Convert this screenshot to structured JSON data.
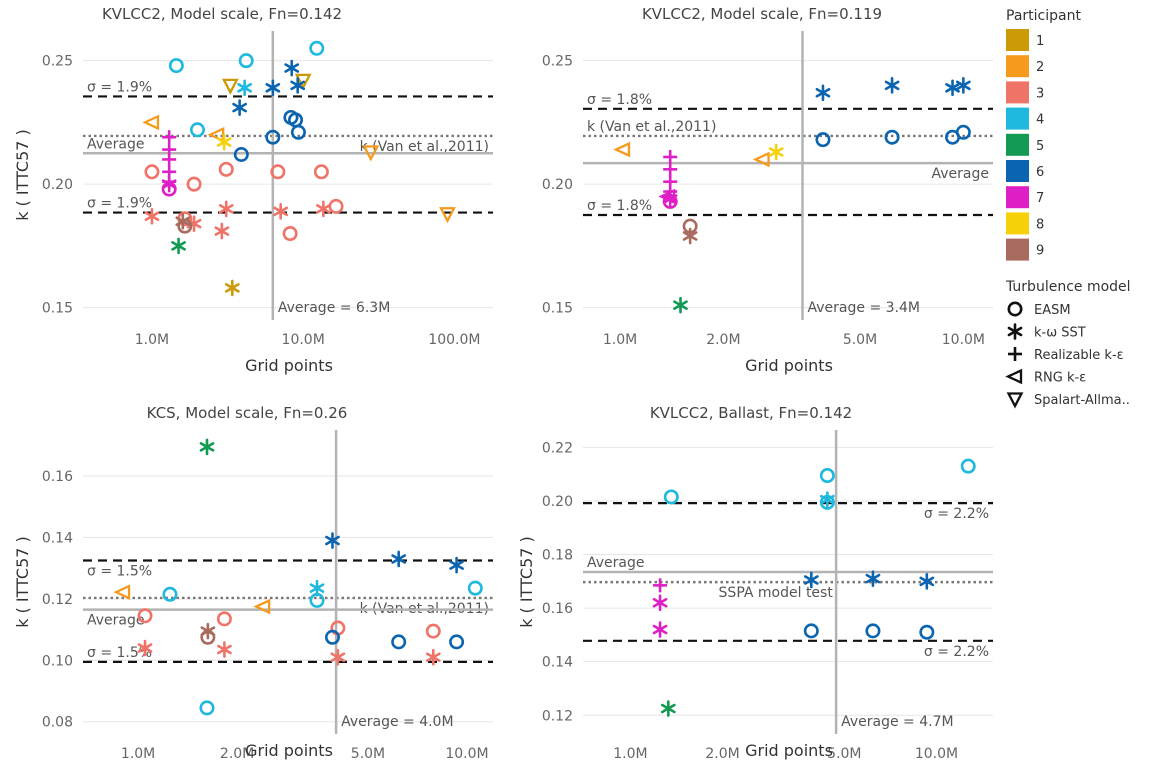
{
  "chart_data": [
    {
      "type": "scatter",
      "title": "KVLCC2, Model scale, Fn=0.142",
      "xlabel": "Grid points",
      "ylabel": "k ( ITTC57 )",
      "xscale": "log",
      "xlim": [
        0.35,
        180
      ],
      "ylim": [
        0.145,
        0.262
      ],
      "xticks": [
        1,
        10,
        100
      ],
      "xtick_labels": [
        "1.0M",
        "10.0M",
        "100.0M"
      ],
      "yticks": [
        0.15,
        0.2,
        0.25
      ],
      "ytick_labels": [
        "0.15",
        "0.20",
        "0.25"
      ],
      "ref_lines": [
        {
          "kind": "dash",
          "y": 0.2355,
          "label": "σ = 1.9%",
          "label_pos": "above-left"
        },
        {
          "kind": "dash",
          "y": 0.1885,
          "label": "σ = 1.9%",
          "label_pos": "above-left"
        },
        {
          "kind": "dot",
          "y": 0.2195,
          "label": "k (Van et al.,2011)",
          "label_pos": "below-right"
        },
        {
          "kind": "solid",
          "y": 0.2125,
          "label": "Average",
          "label_pos": "above-left"
        },
        {
          "kind": "vsolid",
          "x": 6.3,
          "label": "Average = 6.3M",
          "label_pos": "bottom-right"
        }
      ],
      "points": [
        {
          "x": 3.4,
          "y": 0.158,
          "p": 1,
          "m": "star"
        },
        {
          "x": 3.3,
          "y": 0.24,
          "p": 1,
          "m": "tridown"
        },
        {
          "x": 10.0,
          "y": 0.242,
          "p": 1,
          "m": "tridown"
        },
        {
          "x": 2.7,
          "y": 0.22,
          "p": 2,
          "m": "trileft"
        },
        {
          "x": 1.0,
          "y": 0.225,
          "p": 2,
          "m": "trileft"
        },
        {
          "x": 28,
          "y": 0.213,
          "p": 2,
          "m": "tridown"
        },
        {
          "x": 90,
          "y": 0.188,
          "p": 2,
          "m": "tridown"
        },
        {
          "x": 1.0,
          "y": 0.205,
          "p": 3,
          "m": "circle"
        },
        {
          "x": 1.9,
          "y": 0.2,
          "p": 3,
          "m": "circle"
        },
        {
          "x": 3.1,
          "y": 0.206,
          "p": 3,
          "m": "circle"
        },
        {
          "x": 6.8,
          "y": 0.205,
          "p": 3,
          "m": "circle"
        },
        {
          "x": 13.2,
          "y": 0.205,
          "p": 3,
          "m": "circle"
        },
        {
          "x": 16.5,
          "y": 0.191,
          "p": 3,
          "m": "circle"
        },
        {
          "x": 8.2,
          "y": 0.18,
          "p": 3,
          "m": "circle"
        },
        {
          "x": 1.65,
          "y": 0.186,
          "p": 3,
          "m": "circle"
        },
        {
          "x": 1.0,
          "y": 0.187,
          "p": 3,
          "m": "star"
        },
        {
          "x": 1.9,
          "y": 0.184,
          "p": 3,
          "m": "star"
        },
        {
          "x": 2.9,
          "y": 0.181,
          "p": 3,
          "m": "star"
        },
        {
          "x": 3.1,
          "y": 0.19,
          "p": 3,
          "m": "star"
        },
        {
          "x": 7.1,
          "y": 0.189,
          "p": 3,
          "m": "star"
        },
        {
          "x": 13.6,
          "y": 0.19,
          "p": 3,
          "m": "star"
        },
        {
          "x": 1.45,
          "y": 0.248,
          "p": 4,
          "m": "circle"
        },
        {
          "x": 2.0,
          "y": 0.222,
          "p": 4,
          "m": "circle"
        },
        {
          "x": 4.2,
          "y": 0.25,
          "p": 4,
          "m": "circle"
        },
        {
          "x": 12.3,
          "y": 0.255,
          "p": 4,
          "m": "circle"
        },
        {
          "x": 4.1,
          "y": 0.239,
          "p": 4,
          "m": "star"
        },
        {
          "x": 1.5,
          "y": 0.175,
          "p": 5,
          "m": "star"
        },
        {
          "x": 3.9,
          "y": 0.212,
          "p": 6,
          "m": "circle"
        },
        {
          "x": 6.3,
          "y": 0.219,
          "p": 6,
          "m": "circle"
        },
        {
          "x": 8.3,
          "y": 0.227,
          "p": 6,
          "m": "circle"
        },
        {
          "x": 8.9,
          "y": 0.226,
          "p": 6,
          "m": "circle"
        },
        {
          "x": 9.3,
          "y": 0.221,
          "p": 6,
          "m": "circle"
        },
        {
          "x": 3.8,
          "y": 0.231,
          "p": 6,
          "m": "star"
        },
        {
          "x": 6.3,
          "y": 0.239,
          "p": 6,
          "m": "star"
        },
        {
          "x": 8.4,
          "y": 0.247,
          "p": 6,
          "m": "star"
        },
        {
          "x": 9.2,
          "y": 0.24,
          "p": 6,
          "m": "star"
        },
        {
          "x": 1.3,
          "y": 0.219,
          "p": 7,
          "m": "plus"
        },
        {
          "x": 1.3,
          "y": 0.214,
          "p": 7,
          "m": "plus"
        },
        {
          "x": 1.3,
          "y": 0.21,
          "p": 7,
          "m": "plus"
        },
        {
          "x": 1.3,
          "y": 0.205,
          "p": 7,
          "m": "plus"
        },
        {
          "x": 1.3,
          "y": 0.201,
          "p": 7,
          "m": "plus"
        },
        {
          "x": 1.3,
          "y": 0.198,
          "p": 7,
          "m": "circle"
        },
        {
          "x": 1.3,
          "y": 0.2,
          "p": 7,
          "m": "star"
        },
        {
          "x": 3.0,
          "y": 0.217,
          "p": 8,
          "m": "star"
        },
        {
          "x": 1.65,
          "y": 0.183,
          "p": 9,
          "m": "circle"
        },
        {
          "x": 1.6,
          "y": 0.185,
          "p": 9,
          "m": "star"
        }
      ]
    },
    {
      "type": "scatter",
      "title": "KVLCC2, Model scale, Fn=0.119",
      "xlabel": "Grid points",
      "ylabel": "",
      "xscale": "log",
      "xlim": [
        0.78,
        12.2
      ],
      "ylim": [
        0.145,
        0.262
      ],
      "xticks": [
        1,
        2,
        5,
        10
      ],
      "xtick_labels": [
        "1.0M",
        "2.0M",
        "5.0M",
        "10.0M"
      ],
      "yticks": [
        0.15,
        0.2,
        0.25
      ],
      "ytick_labels": [
        "0.15",
        "0.20",
        "0.25"
      ],
      "ref_lines": [
        {
          "kind": "dash",
          "y": 0.2305,
          "label": "σ = 1.8%",
          "label_pos": "above-left"
        },
        {
          "kind": "dash",
          "y": 0.1875,
          "label": "σ = 1.8%",
          "label_pos": "above-left"
        },
        {
          "kind": "dot",
          "y": 0.2195,
          "label": "k (Van et al.,2011)",
          "label_pos": "above-left"
        },
        {
          "kind": "solid",
          "y": 0.2085,
          "label": "Average",
          "label_pos": "below-right"
        },
        {
          "kind": "vsolid",
          "x": 3.4,
          "label": "Average = 3.4M",
          "label_pos": "bottom-right"
        }
      ],
      "points": [
        {
          "x": 1.02,
          "y": 0.214,
          "p": 2,
          "m": "trileft"
        },
        {
          "x": 2.6,
          "y": 0.21,
          "p": 2,
          "m": "trileft"
        },
        {
          "x": 2.85,
          "y": 0.213,
          "p": 8,
          "m": "star"
        },
        {
          "x": 1.5,
          "y": 0.151,
          "p": 5,
          "m": "star"
        },
        {
          "x": 3.9,
          "y": 0.218,
          "p": 6,
          "m": "circle"
        },
        {
          "x": 6.2,
          "y": 0.219,
          "p": 6,
          "m": "circle"
        },
        {
          "x": 9.3,
          "y": 0.219,
          "p": 6,
          "m": "circle"
        },
        {
          "x": 10.0,
          "y": 0.221,
          "p": 6,
          "m": "circle"
        },
        {
          "x": 3.9,
          "y": 0.237,
          "p": 6,
          "m": "star"
        },
        {
          "x": 6.2,
          "y": 0.24,
          "p": 6,
          "m": "star"
        },
        {
          "x": 9.3,
          "y": 0.239,
          "p": 6,
          "m": "star"
        },
        {
          "x": 10.0,
          "y": 0.24,
          "p": 6,
          "m": "star"
        },
        {
          "x": 1.4,
          "y": 0.211,
          "p": 7,
          "m": "plus"
        },
        {
          "x": 1.4,
          "y": 0.206,
          "p": 7,
          "m": "plus"
        },
        {
          "x": 1.4,
          "y": 0.201,
          "p": 7,
          "m": "plus"
        },
        {
          "x": 1.4,
          "y": 0.197,
          "p": 7,
          "m": "plus"
        },
        {
          "x": 1.38,
          "y": 0.195,
          "p": 7,
          "m": "trileft"
        },
        {
          "x": 1.4,
          "y": 0.194,
          "p": 7,
          "m": "star"
        },
        {
          "x": 1.4,
          "y": 0.193,
          "p": 7,
          "m": "circle"
        },
        {
          "x": 1.6,
          "y": 0.183,
          "p": 9,
          "m": "circle"
        },
        {
          "x": 1.6,
          "y": 0.179,
          "p": 9,
          "m": "star"
        }
      ]
    },
    {
      "type": "scatter",
      "title": "KCS, Model scale, Fn=0.26",
      "xlabel": "Grid points",
      "ylabel": "k ( ITTC57 )",
      "xscale": "log",
      "xlim": [
        0.68,
        12.0
      ],
      "ylim": [
        0.076,
        0.175
      ],
      "xticks": [
        1,
        2,
        5,
        10
      ],
      "xtick_labels": [
        "1.0M",
        "2.0M",
        "5.0M",
        "10.0M"
      ],
      "yticks": [
        0.08,
        0.1,
        0.12,
        0.14,
        0.16
      ],
      "ytick_labels": [
        "0.08",
        "0.10",
        "0.12",
        "0.14",
        "0.16"
      ],
      "ref_lines": [
        {
          "kind": "dash",
          "y": 0.1325,
          "label": "σ = 1.5%",
          "label_pos": "below-left"
        },
        {
          "kind": "dash",
          "y": 0.0995,
          "label": "σ = 1.5%",
          "label_pos": "above-left"
        },
        {
          "kind": "dot",
          "y": 0.1203,
          "label": "k (Van et al.,2011)",
          "label_pos": "below-right"
        },
        {
          "kind": "solid",
          "y": 0.1165,
          "label": "Average",
          "label_pos": "below-left"
        },
        {
          "kind": "vsolid",
          "x": 4.0,
          "label": "Average = 4.0M",
          "label_pos": "bottom-right"
        }
      ],
      "points": [
        {
          "x": 0.9,
          "y": 0.1222,
          "p": 2,
          "m": "trileft"
        },
        {
          "x": 2.4,
          "y": 0.1175,
          "p": 2,
          "m": "trileft"
        },
        {
          "x": 1.05,
          "y": 0.1145,
          "p": 3,
          "m": "circle"
        },
        {
          "x": 1.83,
          "y": 0.1135,
          "p": 3,
          "m": "circle"
        },
        {
          "x": 4.05,
          "y": 0.1105,
          "p": 3,
          "m": "circle"
        },
        {
          "x": 7.9,
          "y": 0.1095,
          "p": 3,
          "m": "circle"
        },
        {
          "x": 1.05,
          "y": 0.104,
          "p": 3,
          "m": "star"
        },
        {
          "x": 1.83,
          "y": 0.1035,
          "p": 3,
          "m": "star"
        },
        {
          "x": 4.05,
          "y": 0.101,
          "p": 3,
          "m": "star"
        },
        {
          "x": 7.9,
          "y": 0.101,
          "p": 3,
          "m": "star"
        },
        {
          "x": 1.25,
          "y": 0.1215,
          "p": 4,
          "m": "circle"
        },
        {
          "x": 3.5,
          "y": 0.1195,
          "p": 4,
          "m": "circle"
        },
        {
          "x": 10.6,
          "y": 0.1235,
          "p": 4,
          "m": "circle"
        },
        {
          "x": 1.62,
          "y": 0.0845,
          "p": 4,
          "m": "circle"
        },
        {
          "x": 3.5,
          "y": 0.1235,
          "p": 4,
          "m": "star"
        },
        {
          "x": 1.62,
          "y": 0.1695,
          "p": 5,
          "m": "star"
        },
        {
          "x": 3.9,
          "y": 0.1075,
          "p": 6,
          "m": "circle"
        },
        {
          "x": 6.2,
          "y": 0.106,
          "p": 6,
          "m": "circle"
        },
        {
          "x": 9.3,
          "y": 0.106,
          "p": 6,
          "m": "circle"
        },
        {
          "x": 3.9,
          "y": 0.139,
          "p": 6,
          "m": "star"
        },
        {
          "x": 6.2,
          "y": 0.133,
          "p": 6,
          "m": "star"
        },
        {
          "x": 9.3,
          "y": 0.131,
          "p": 6,
          "m": "star"
        },
        {
          "x": 1.63,
          "y": 0.1075,
          "p": 9,
          "m": "circle"
        },
        {
          "x": 1.63,
          "y": 0.1095,
          "p": 9,
          "m": "star"
        }
      ]
    },
    {
      "type": "scatter",
      "title": "KVLCC2, Ballast, Fn=0.142",
      "xlabel": "Grid points",
      "ylabel": "k ( ITTC57 )",
      "xscale": "log",
      "xlim": [
        0.7,
        15.3
      ],
      "ylim": [
        0.113,
        0.2265
      ],
      "xticks": [
        1,
        2,
        5,
        10
      ],
      "xtick_labels": [
        "1.0M",
        "2.0M",
        "5.0M",
        "10.0M"
      ],
      "yticks": [
        0.12,
        0.14,
        0.16,
        0.18,
        0.2,
        0.22
      ],
      "ytick_labels": [
        "0.12",
        "0.14",
        "0.16",
        "0.18",
        "0.20",
        "0.22"
      ],
      "ref_lines": [
        {
          "kind": "dash",
          "y": 0.1992,
          "label": "σ = 2.2%",
          "label_pos": "below-right"
        },
        {
          "kind": "dash",
          "y": 0.1478,
          "label": "σ = 2.2%",
          "label_pos": "below-right"
        },
        {
          "kind": "dot",
          "y": 0.1697,
          "label": "SSPA model test",
          "label_pos": "below-center"
        },
        {
          "kind": "solid",
          "y": 0.1735,
          "label": "Average",
          "label_pos": "above-left"
        },
        {
          "kind": "vsolid",
          "x": 4.7,
          "label": "Average = 4.7M",
          "label_pos": "bottom-right"
        }
      ],
      "points": [
        {
          "x": 1.36,
          "y": 0.2015,
          "p": 4,
          "m": "circle"
        },
        {
          "x": 4.4,
          "y": 0.2095,
          "p": 4,
          "m": "circle"
        },
        {
          "x": 4.4,
          "y": 0.1995,
          "p": 4,
          "m": "circle"
        },
        {
          "x": 12.7,
          "y": 0.213,
          "p": 4,
          "m": "circle"
        },
        {
          "x": 4.4,
          "y": 0.2005,
          "p": 4,
          "m": "star"
        },
        {
          "x": 1.33,
          "y": 0.1225,
          "p": 5,
          "m": "star"
        },
        {
          "x": 3.9,
          "y": 0.1515,
          "p": 6,
          "m": "circle"
        },
        {
          "x": 6.2,
          "y": 0.1515,
          "p": 6,
          "m": "circle"
        },
        {
          "x": 9.3,
          "y": 0.151,
          "p": 6,
          "m": "circle"
        },
        {
          "x": 3.9,
          "y": 0.1705,
          "p": 6,
          "m": "star"
        },
        {
          "x": 6.2,
          "y": 0.171,
          "p": 6,
          "m": "star"
        },
        {
          "x": 9.3,
          "y": 0.17,
          "p": 6,
          "m": "star"
        },
        {
          "x": 1.25,
          "y": 0.1685,
          "p": 7,
          "m": "plus"
        },
        {
          "x": 1.25,
          "y": 0.162,
          "p": 7,
          "m": "star"
        },
        {
          "x": 1.25,
          "y": 0.152,
          "p": 7,
          "m": "star"
        }
      ]
    }
  ],
  "legend": {
    "participant_title": "Participant",
    "participants": [
      {
        "id": 1,
        "label": "1",
        "color": "#cc9a06"
      },
      {
        "id": 2,
        "label": "2",
        "color": "#f59a1c"
      },
      {
        "id": 3,
        "label": "3",
        "color": "#f07368"
      },
      {
        "id": 4,
        "label": "4",
        "color": "#1fb8de"
      },
      {
        "id": 5,
        "label": "5",
        "color": "#129a52"
      },
      {
        "id": 6,
        "label": "6",
        "color": "#0b64b0"
      },
      {
        "id": 7,
        "label": "7",
        "color": "#df1fc6"
      },
      {
        "id": 8,
        "label": "8",
        "color": "#f6d10a"
      },
      {
        "id": 9,
        "label": "9",
        "color": "#a86b5e"
      }
    ],
    "model_title": "Turbulence model",
    "models": [
      {
        "m": "circle",
        "label": "EASM"
      },
      {
        "m": "star",
        "label": "k-ω SST"
      },
      {
        "m": "plus",
        "label": "Realizable k-ε"
      },
      {
        "m": "trileft",
        "label": "RNG k-ε"
      },
      {
        "m": "tridown",
        "label": "Spalart-Allma.."
      }
    ]
  }
}
